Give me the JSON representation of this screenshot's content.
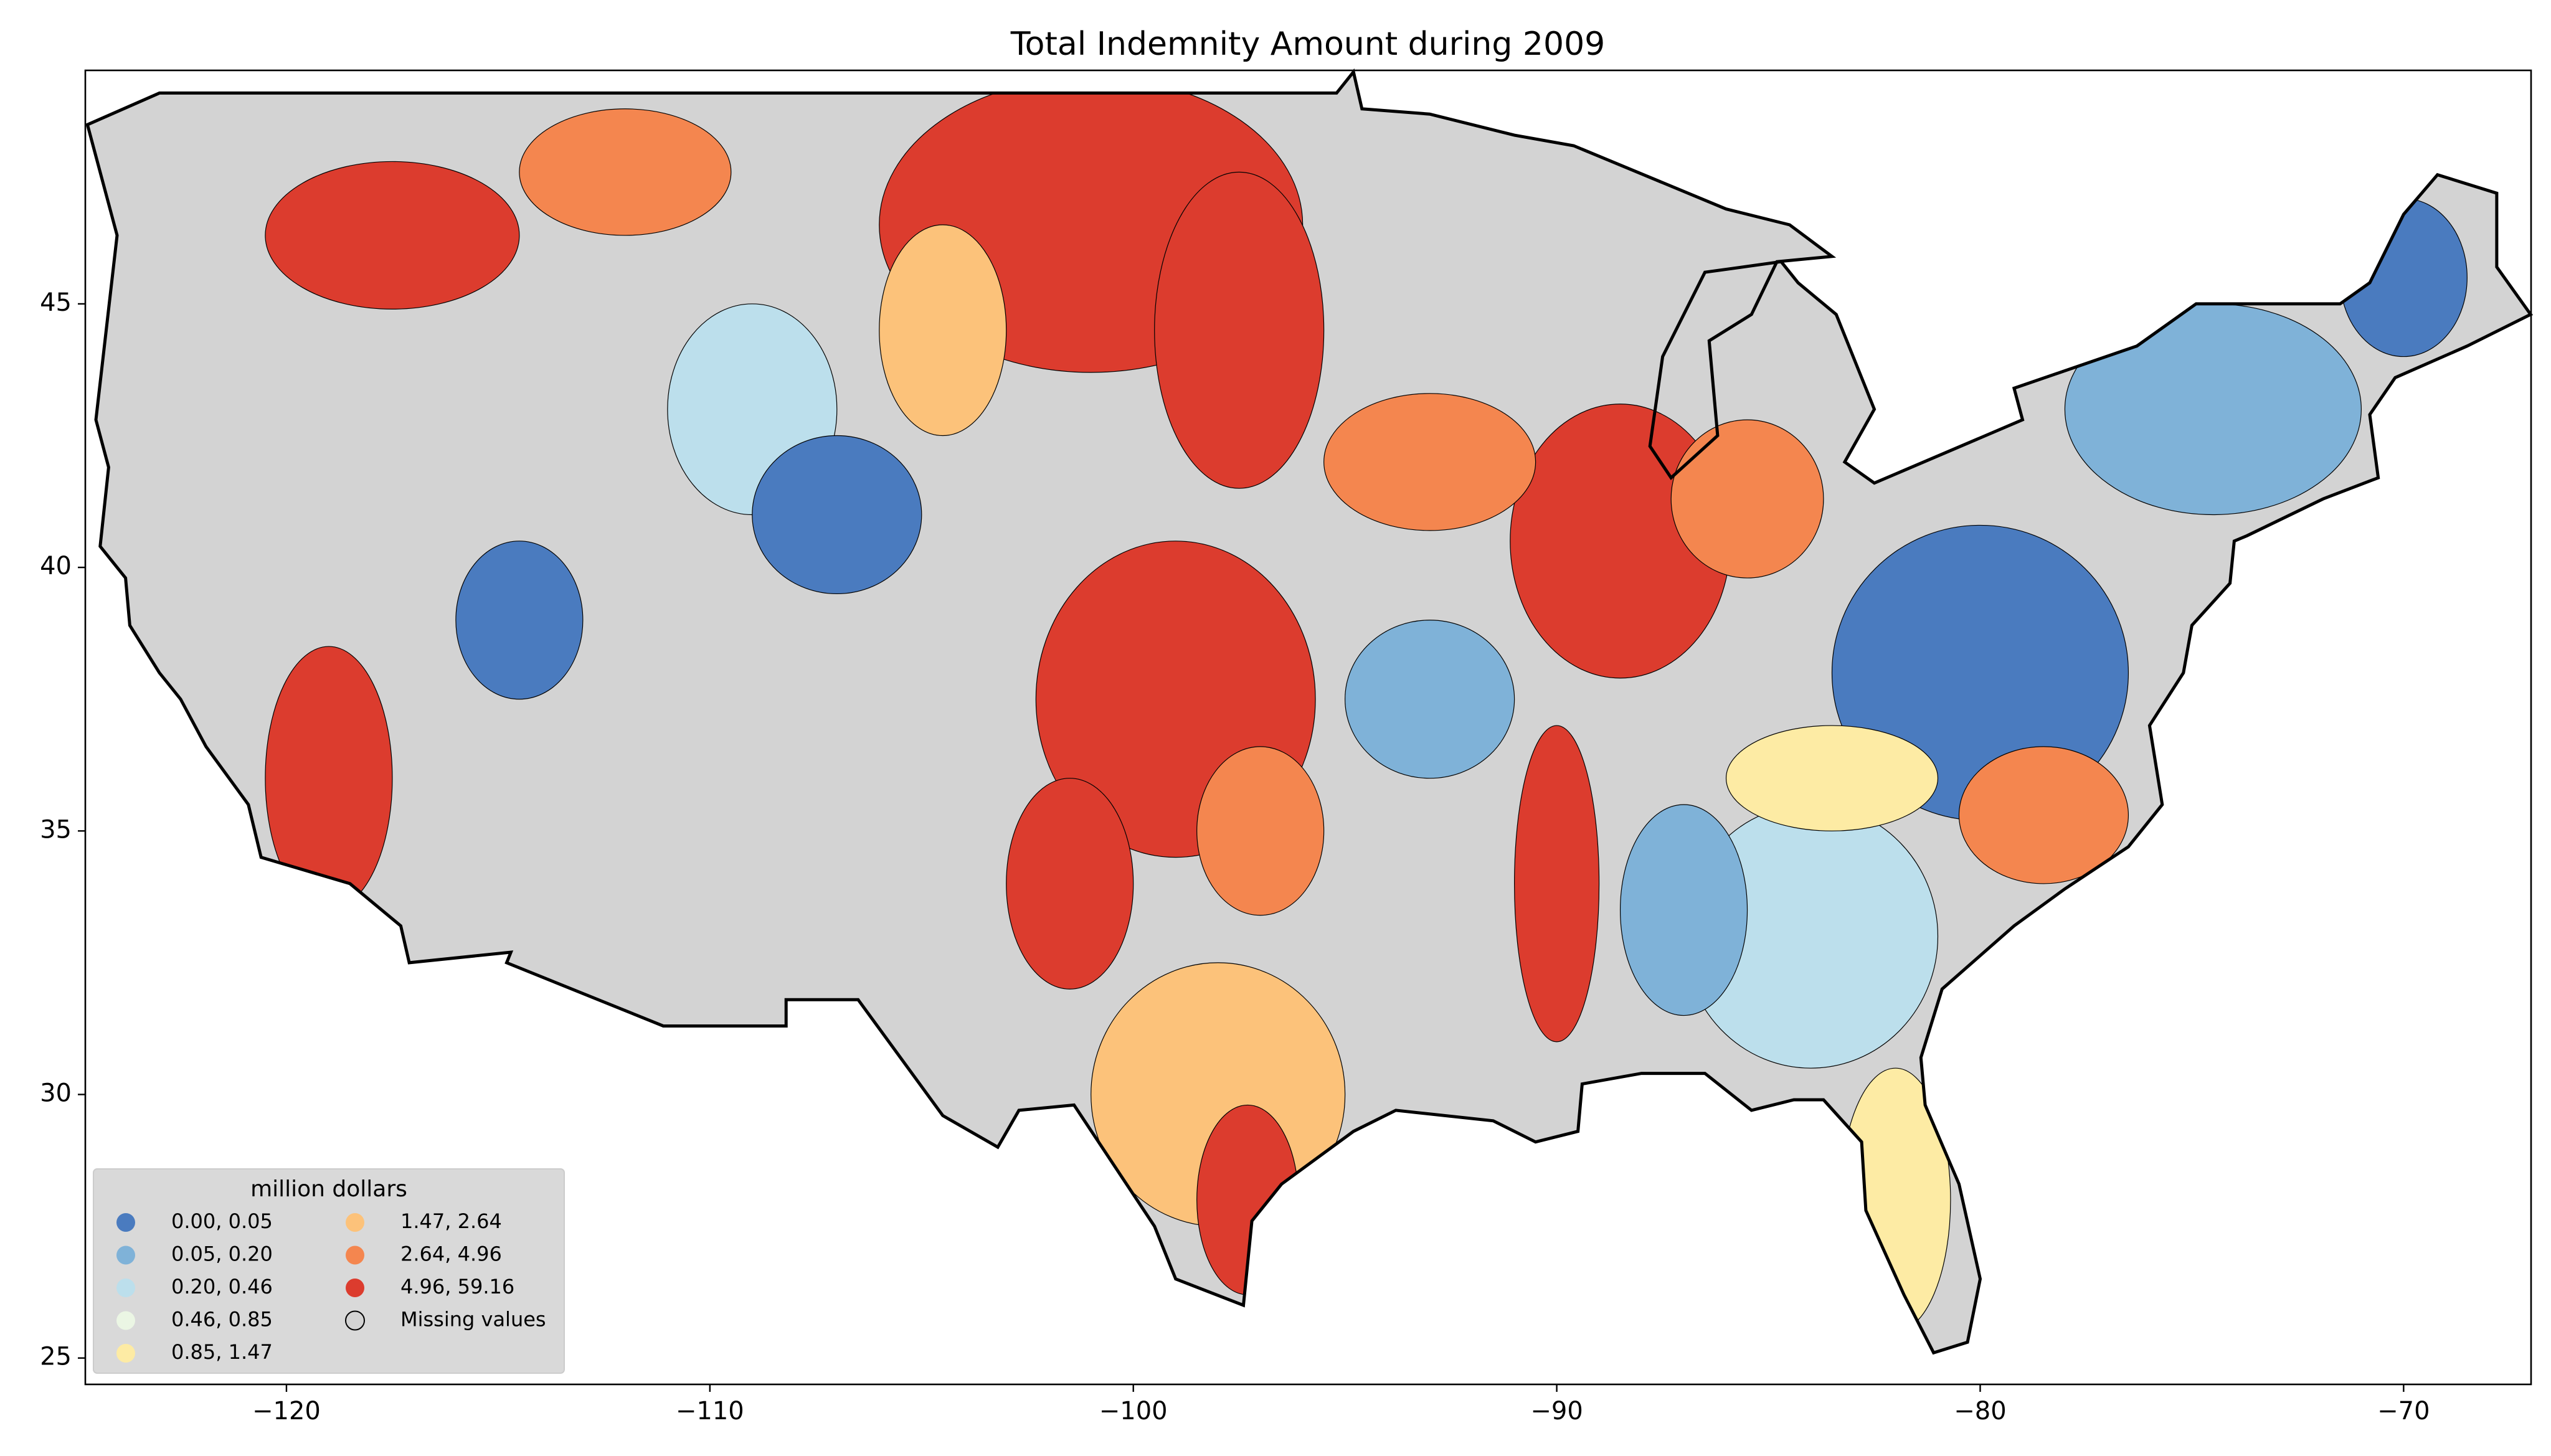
{
  "chart_data": {
    "type": "choropleth",
    "title": "Total Indemnity Amount during 2009",
    "xlim": [
      -124.75,
      -66.99
    ],
    "ylim": [
      24.5,
      49.43
    ],
    "xticks": [
      {
        "value": -120,
        "label": "−120"
      },
      {
        "value": -110,
        "label": "−110"
      },
      {
        "value": -100,
        "label": "−100"
      },
      {
        "value": -90,
        "label": "−90"
      },
      {
        "value": -80,
        "label": "−80"
      },
      {
        "value": -70,
        "label": "−70"
      }
    ],
    "yticks": [
      25,
      30,
      35,
      40,
      45
    ],
    "legend": {
      "title": "million dollars",
      "position": "lower left",
      "entries": [
        {
          "label": "0.00,  0.05",
          "color": "#4a7bbf"
        },
        {
          "label": "0.05,  0.20",
          "color": "#7fb2d8"
        },
        {
          "label": "0.20,  0.46",
          "color": "#bcdfec"
        },
        {
          "label": "0.46,  0.85",
          "color": "#ebf6e4"
        },
        {
          "label": "0.85,  1.47",
          "color": "#fdeba4"
        },
        {
          "label": "1.47,  2.64",
          "color": "#fcc27a"
        },
        {
          "label": "2.64,  4.96",
          "color": "#f4864f"
        },
        {
          "label": "4.96, 59.16",
          "color": "#dc3c2e"
        },
        {
          "label": "Missing values",
          "color": "#d3d3d3"
        }
      ]
    }
  }
}
